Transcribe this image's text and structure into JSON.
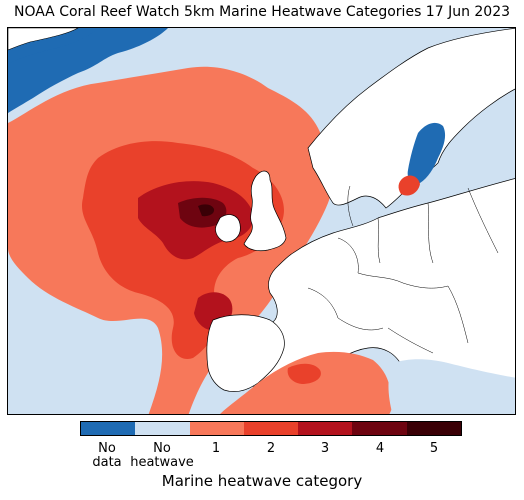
{
  "title": "NOAA Coral Reef Watch 5km Marine Heatwave Categories 17 Jun 2023",
  "legend": {
    "title": "Marine heatwave category",
    "categories": [
      {
        "label": "No",
        "label2": "data",
        "color": "#1f6bb3"
      },
      {
        "label": "No",
        "label2": "heatwave",
        "color": "#cfe1f2"
      },
      {
        "label": "1",
        "color": "#f7785a"
      },
      {
        "label": "2",
        "color": "#e9412b"
      },
      {
        "label": "3",
        "color": "#b3121d"
      },
      {
        "label": "4",
        "color": "#6e0410"
      },
      {
        "label": "5",
        "color": "#3a0006"
      }
    ]
  },
  "map": {
    "land_color": "#ffffff",
    "border_color": "#000000"
  }
}
